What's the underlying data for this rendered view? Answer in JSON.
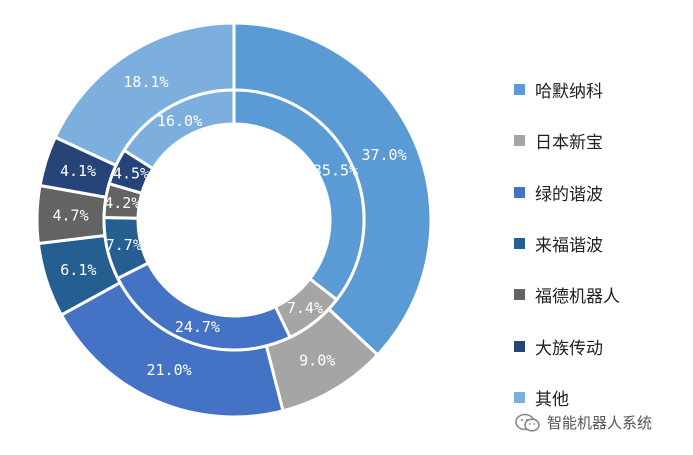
{
  "chart_data": {
    "type": "pie",
    "variant": "nested-donut",
    "categories": [
      "哈默纳科",
      "日本新宝",
      "绿的谐波",
      "来福谐波",
      "福德机器人",
      "大族传动",
      "其他"
    ],
    "colors": [
      "#5B9BD5",
      "#A5A5A5",
      "#4472C4",
      "#255E91",
      "#636363",
      "#264478",
      "#7CAFDD"
    ],
    "series": [
      {
        "ring": "outer",
        "values": [
          37.0,
          9.0,
          21.0,
          6.1,
          4.7,
          4.1,
          18.1
        ],
        "labels": [
          "37.0%",
          "9.0%",
          "21.0%",
          "6.1%",
          "4.7%",
          "4.1%",
          "18.1%"
        ]
      },
      {
        "ring": "inner",
        "values": [
          35.5,
          7.4,
          24.7,
          7.7,
          4.2,
          4.5,
          16.0
        ],
        "labels": [
          "35.5%",
          "7.4%",
          "24.7%",
          "7.7%",
          "4.2%",
          "4.5%",
          "16.0%"
        ]
      }
    ],
    "legend_position": "right"
  },
  "watermark": {
    "text": "智能机器人系统",
    "icon": "wechat-icon"
  }
}
